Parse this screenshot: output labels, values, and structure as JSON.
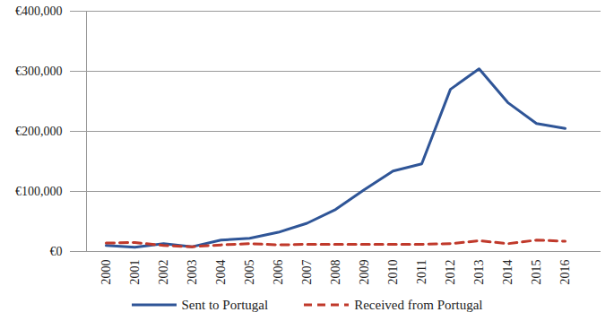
{
  "chart_data": {
    "type": "line",
    "categories": [
      "2000",
      "2001",
      "2002",
      "2003",
      "2004",
      "2005",
      "2006",
      "2007",
      "2008",
      "2009",
      "2010",
      "2011",
      "2012",
      "2013",
      "2014",
      "2015",
      "2016"
    ],
    "series": [
      {
        "name": "Sent to Portugal",
        "color": "#2f5597",
        "line_style": "solid",
        "values": [
          10000,
          7000,
          13000,
          8000,
          19000,
          22000,
          32000,
          47000,
          70000,
          103000,
          134000,
          146000,
          270000,
          304000,
          248000,
          213000,
          205000
        ]
      },
      {
        "name": "Received from Portugal",
        "color": "#c0392b",
        "line_style": "dashed",
        "values": [
          14000,
          15000,
          10000,
          8000,
          11000,
          13000,
          11000,
          12000,
          12000,
          12000,
          12000,
          12000,
          13000,
          18000,
          13000,
          19000,
          17000
        ]
      }
    ],
    "ylim": [
      0,
      400000
    ],
    "yticks": [
      {
        "value": 0,
        "label": "€0"
      },
      {
        "value": 100000,
        "label": "€100,000"
      },
      {
        "value": 200000,
        "label": "€200,000"
      },
      {
        "value": 300000,
        "label": "€300,000"
      },
      {
        "value": 400000,
        "label": "€400,000"
      }
    ],
    "grid": true,
    "legend": "bottom"
  }
}
